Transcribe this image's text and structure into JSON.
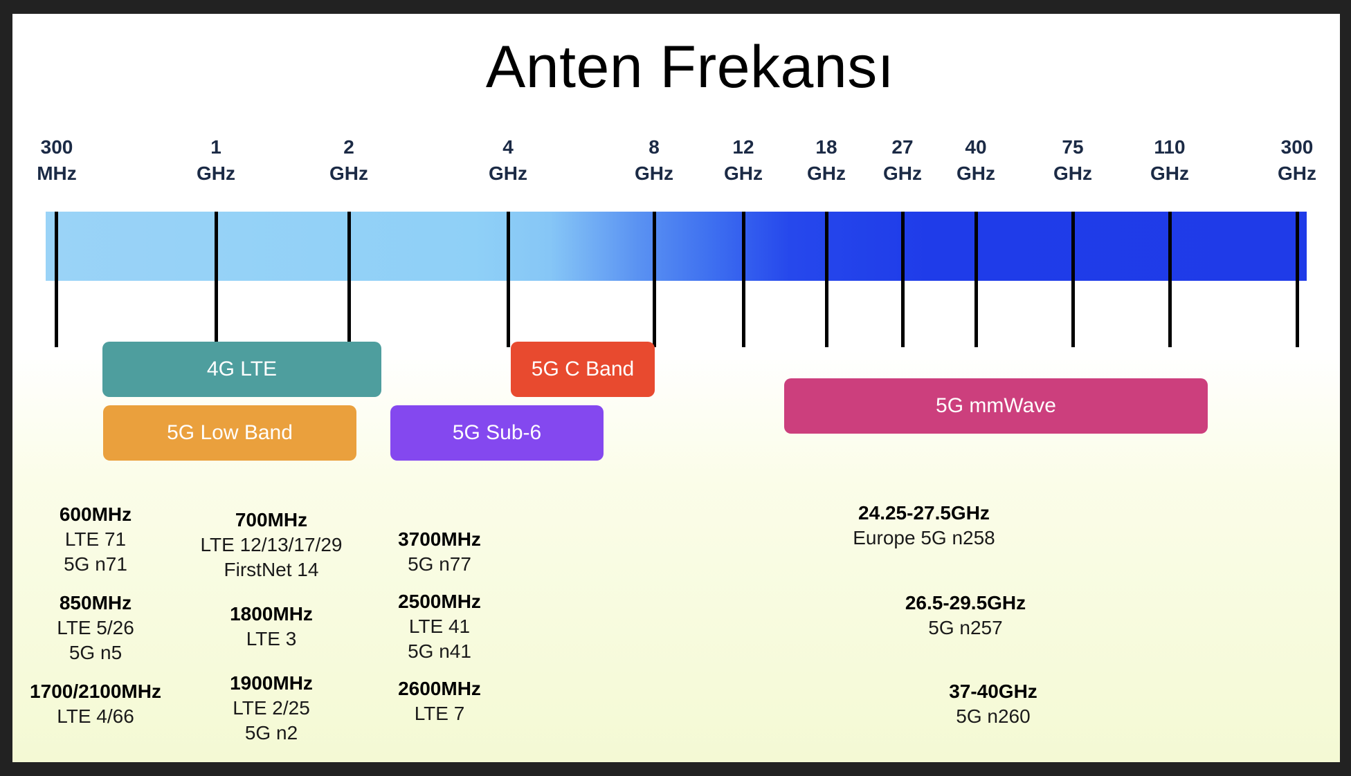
{
  "title": "Anten Frekansı",
  "colors": {
    "bar_light": "#9ad3f7",
    "bar_dark": "#1f3be8",
    "lte": "#4e9e9e",
    "c_band": "#e84a2f",
    "low_band": "#eaa03d",
    "sub6": "#8448ef",
    "mmwave": "#cc3f7d"
  },
  "ticks": [
    {
      "value": "300",
      "unit": "MHz"
    },
    {
      "value": "1",
      "unit": "GHz"
    },
    {
      "value": "2",
      "unit": "GHz"
    },
    {
      "value": "4",
      "unit": "GHz"
    },
    {
      "value": "8",
      "unit": "GHz"
    },
    {
      "value": "12",
      "unit": "GHz"
    },
    {
      "value": "18",
      "unit": "GHz"
    },
    {
      "value": "27",
      "unit": "GHz"
    },
    {
      "value": "40",
      "unit": "GHz"
    },
    {
      "value": "75",
      "unit": "GHz"
    },
    {
      "value": "110",
      "unit": "GHz"
    },
    {
      "value": "300",
      "unit": "GHz"
    }
  ],
  "bands": {
    "lte": "4G LTE",
    "c_band": "5G C Band",
    "low_band": "5G Low Band",
    "sub6": "5G Sub-6",
    "mmwave": "5G mmWave"
  },
  "blocks": {
    "b600": {
      "head": "600MHz",
      "lines": [
        "LTE 71",
        "5G n71"
      ]
    },
    "b850": {
      "head": "850MHz",
      "lines": [
        "LTE 5/26",
        "5G n5"
      ]
    },
    "b1700": {
      "head": "1700/2100MHz",
      "lines": [
        "LTE 4/66"
      ]
    },
    "b700": {
      "head": "700MHz",
      "lines": [
        "LTE 12/13/17/29",
        "FirstNet 14"
      ]
    },
    "b1800": {
      "head": "1800MHz",
      "lines": [
        "LTE 3"
      ]
    },
    "b1900": {
      "head": "1900MHz",
      "lines": [
        "LTE 2/25",
        "5G n2"
      ]
    },
    "b3700": {
      "head": "3700MHz",
      "lines": [
        "5G n77"
      ]
    },
    "b2500": {
      "head": "2500MHz",
      "lines": [
        "LTE 41",
        "5G n41"
      ]
    },
    "b2600": {
      "head": "2600MHz",
      "lines": [
        "LTE 7"
      ]
    },
    "b24": {
      "head": "24.25-27.5GHz",
      "lines": [
        "Europe 5G n258"
      ]
    },
    "b26": {
      "head": "26.5-29.5GHz",
      "lines": [
        "5G n257"
      ]
    },
    "b37": {
      "head": "37-40GHz",
      "lines": [
        "5G n260"
      ]
    }
  }
}
